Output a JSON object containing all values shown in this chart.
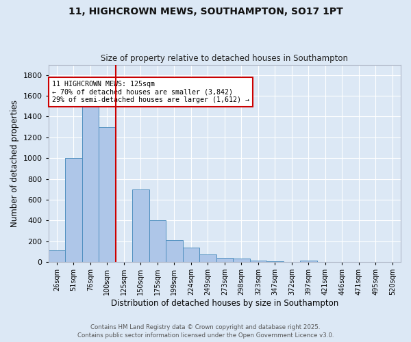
{
  "title1": "11, HIGHCROWN MEWS, SOUTHAMPTON, SO17 1PT",
  "title2": "Size of property relative to detached houses in Southampton",
  "xlabel": "Distribution of detached houses by size in Southampton",
  "ylabel": "Number of detached properties",
  "categories": [
    "26sqm",
    "51sqm",
    "76sqm",
    "100sqm",
    "125sqm",
    "150sqm",
    "175sqm",
    "199sqm",
    "224sqm",
    "249sqm",
    "273sqm",
    "298sqm",
    "323sqm",
    "347sqm",
    "372sqm",
    "397sqm",
    "421sqm",
    "446sqm",
    "471sqm",
    "495sqm",
    "520sqm"
  ],
  "values": [
    110,
    1000,
    1510,
    1300,
    0,
    700,
    400,
    210,
    140,
    70,
    40,
    32,
    15,
    10,
    0,
    15,
    0,
    0,
    0,
    0,
    0
  ],
  "bar_color": "#aec6e8",
  "bar_edge_color": "#4f8fbf",
  "vline_color": "#cc0000",
  "annotation_text": "11 HIGHCROWN MEWS: 125sqm\n← 70% of detached houses are smaller (3,842)\n29% of semi-detached houses are larger (1,612) →",
  "annotation_box_color": "#ffffff",
  "annotation_box_edge_color": "#cc0000",
  "ylim": [
    0,
    1900
  ],
  "yticks": [
    0,
    200,
    400,
    600,
    800,
    1000,
    1200,
    1400,
    1600,
    1800
  ],
  "footer1": "Contains HM Land Registry data © Crown copyright and database right 2025.",
  "footer2": "Contains public sector information licensed under the Open Government Licence v3.0.",
  "bg_color": "#dce8f5",
  "plot_bg_color": "#dce8f5",
  "grid_color": "#ffffff",
  "bar_width": 1.0,
  "title1_fontsize": 10,
  "title2_fontsize": 8.5
}
